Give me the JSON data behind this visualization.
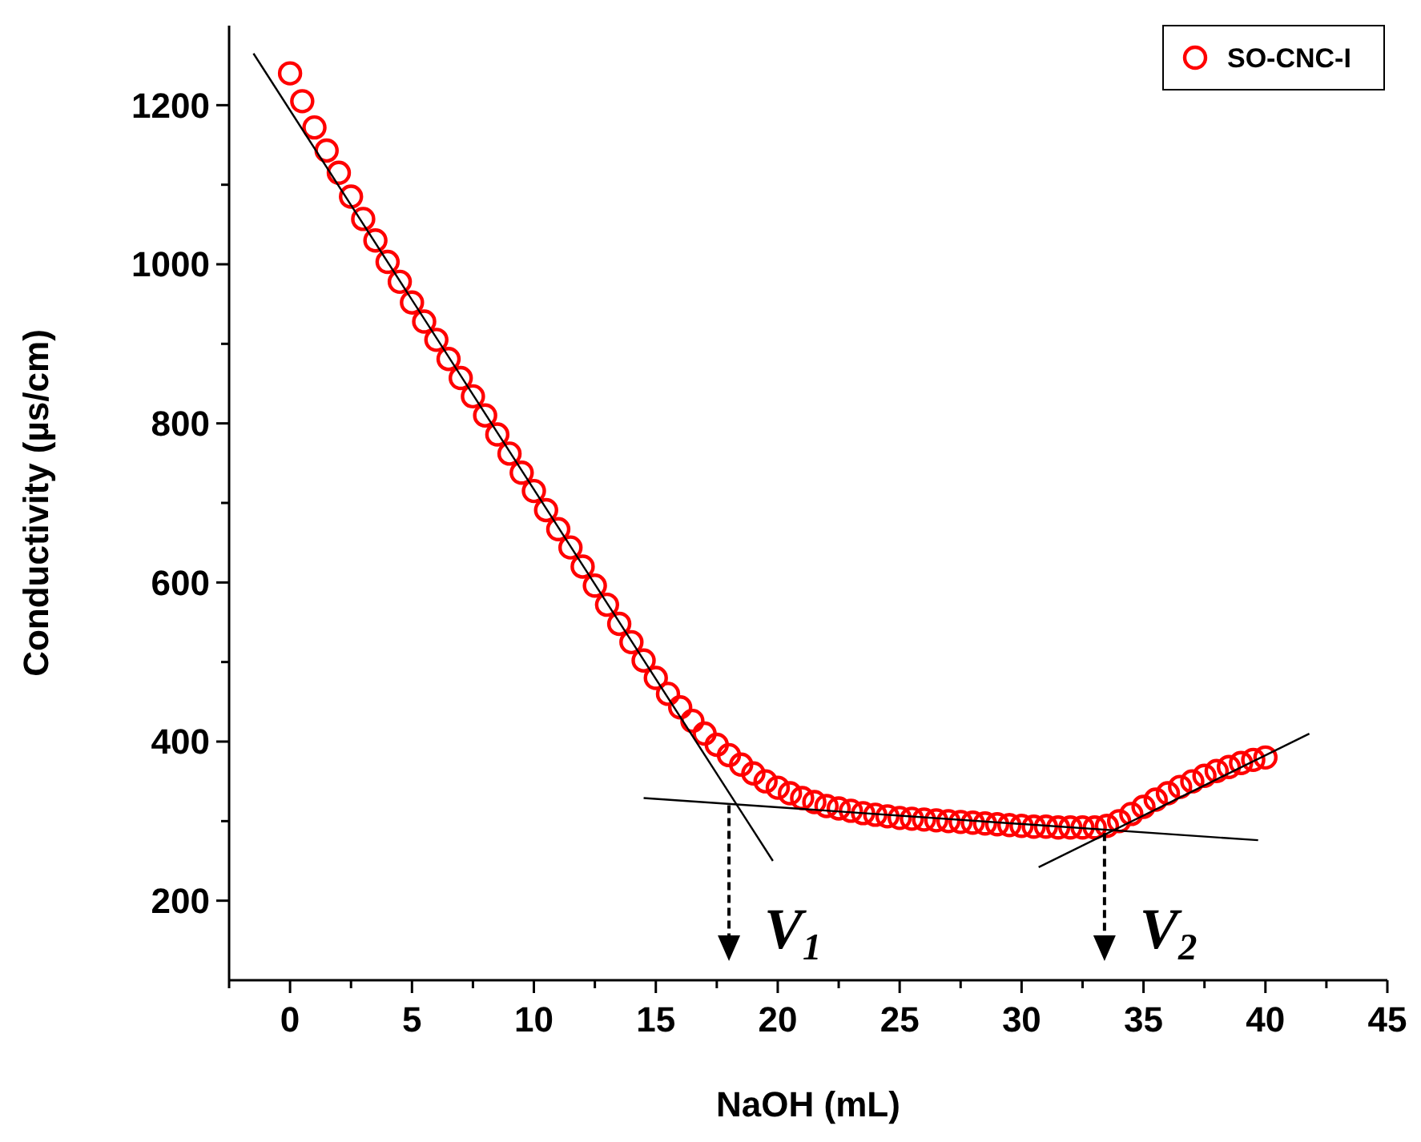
{
  "chart_data": {
    "type": "scatter",
    "xlabel": "NaOH (mL)",
    "ylabel": "Conductivity (µs/cm)",
    "xlim": [
      -2.5,
      45
    ],
    "ylim": [
      100,
      1300
    ],
    "xticks": [
      {
        "value": -2.5,
        "label": null
      },
      0,
      {
        "value": 2.5,
        "label": null
      },
      5,
      {
        "value": 7.5,
        "label": null
      },
      10,
      {
        "value": 12.5,
        "label": null
      },
      15,
      {
        "value": 17.5,
        "label": null
      },
      20,
      {
        "value": 22.5,
        "label": null
      },
      25,
      {
        "value": 27.5,
        "label": null
      },
      30,
      {
        "value": 32.5,
        "label": null
      },
      35,
      {
        "value": 37.5,
        "label": null
      },
      40,
      {
        "value": 42.5,
        "label": null
      },
      45
    ],
    "yticks": [
      200,
      {
        "value": 300,
        "label": null
      },
      400,
      {
        "value": 500,
        "label": null
      },
      600,
      {
        "value": 700,
        "label": null
      },
      800,
      {
        "value": 900,
        "label": null
      },
      1000,
      {
        "value": 1100,
        "label": null
      },
      1200
    ],
    "grid": false,
    "legend": "top right",
    "marker": "circle",
    "series": [
      {
        "name": "SO-CNC-I",
        "color": "#ff0000",
        "x": [
          0,
          0.5,
          1,
          1.5,
          2,
          2.5,
          3,
          3.5,
          4,
          4.5,
          5,
          5.5,
          6,
          6.5,
          7,
          7.5,
          8,
          8.5,
          9,
          9.5,
          10,
          10.5,
          11,
          11.5,
          12,
          12.5,
          13,
          13.5,
          14,
          14.5,
          15,
          15.5,
          16,
          16.5,
          17,
          17.5,
          18,
          18.5,
          19,
          19.5,
          20,
          20.5,
          21,
          21.5,
          22,
          22.5,
          23,
          23.5,
          24,
          24.5,
          25,
          25.5,
          26,
          26.5,
          27,
          27.5,
          28,
          28.5,
          29,
          29.5,
          30,
          30.5,
          31,
          31.5,
          32,
          32.5,
          33,
          33.5,
          34,
          34.5,
          35,
          35.5,
          36,
          36.5,
          37,
          37.5,
          38,
          38.5,
          39,
          39.5,
          40
        ],
        "values": [
          1240,
          1205,
          1172,
          1143,
          1115,
          1085,
          1057,
          1030,
          1003,
          978,
          952,
          928,
          905,
          881,
          857,
          834,
          810,
          786,
          762,
          738,
          715,
          691,
          667,
          644,
          620,
          596,
          572,
          548,
          525,
          502,
          480,
          460,
          443,
          426,
          410,
          396,
          383,
          371,
          360,
          350,
          342,
          335,
          329,
          324,
          319,
          316,
          313,
          310,
          308,
          306,
          304,
          303,
          302,
          301,
          300,
          299,
          298,
          297,
          296,
          295,
          294,
          293,
          293,
          292,
          292,
          292,
          292,
          294,
          300,
          309,
          318,
          327,
          335,
          343,
          350,
          357,
          363,
          368,
          373,
          377,
          380
        ]
      },
      {
        "type": "line",
        "color": "#000000",
        "marker": "none",
        "x": [
          -1.5,
          19.8
        ],
        "values": [
          1265,
          250
        ]
      },
      {
        "type": "line",
        "color": "#000000",
        "marker": "none",
        "x": [
          14.5,
          39.7
        ],
        "values": [
          329,
          276
        ]
      },
      {
        "type": "line",
        "color": "#000000",
        "marker": "none",
        "x": [
          30.7,
          41.8
        ],
        "values": [
          242,
          410
        ]
      }
    ],
    "annotations": [
      {
        "text": "V$_{1}$",
        "x": 18,
        "y": 320
      },
      {
        "text": "V$_{2}$",
        "x": 33.4,
        "y": 285
      }
    ]
  }
}
